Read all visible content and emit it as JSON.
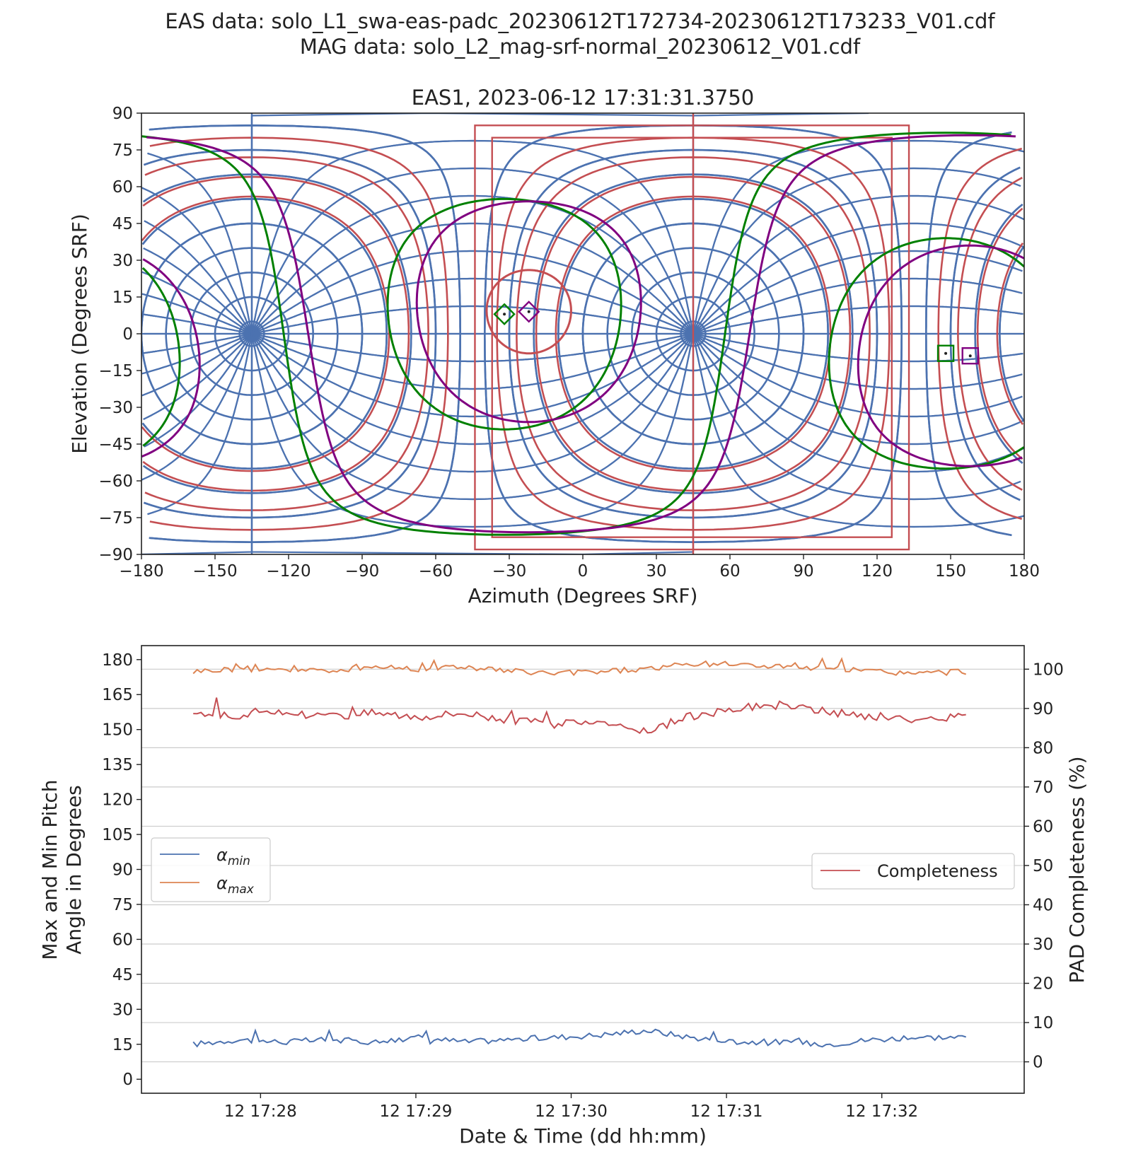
{
  "figure": {
    "suptitle_lines": [
      "EAS data: solo_L1_swa-eas-padc_20230612T172734-20230612T173233_V01.cdf",
      "MAG data: solo_L2_mag-srf-normal_20230612_V01.cdf"
    ]
  },
  "chart_data": [
    {
      "type": "line",
      "title": "EAS1, 2023-06-12 17:31:31.3750",
      "xlabel": "Azimuth (Degrees SRF)",
      "ylabel": "Elevation (Degrees SRF)",
      "xlim": [
        -180,
        180
      ],
      "ylim": [
        -90,
        90
      ],
      "xticks": [
        "−180",
        "−150",
        "−120",
        "−90",
        "−60",
        "−30",
        "0",
        "30",
        "60",
        "90",
        "120",
        "150",
        "180"
      ],
      "yticks": [
        "90",
        "75",
        "60",
        "45",
        "30",
        "15",
        "0",
        "-15",
        "-30",
        "-45",
        "-60",
        "-75",
        "-90"
      ],
      "grid": false,
      "colors": {
        "sensor_grid": "#4c72b0",
        "pad_boundary": "#c44e52",
        "field_plus": "#008000",
        "field_minus": "#800080"
      },
      "series": [
        {
          "role": "eas-head-grid",
          "color": "#4c72b0",
          "centers": [
            [
              -135,
              0
            ],
            [
              45,
              0
            ]
          ]
        },
        {
          "role": "pad-boundary",
          "color": "#c44e52",
          "centers": [
            [
              -135,
              0
            ],
            [
              45,
              0
            ]
          ]
        },
        {
          "role": "field-circle-green",
          "color": "#008000",
          "center": [
            -32,
            8
          ],
          "angular_radius": 47
        },
        {
          "role": "field-circle-purple",
          "color": "#800080",
          "center": [
            -22,
            9
          ],
          "angular_radius": 45
        },
        {
          "role": "field-circle-green-anti",
          "color": "#008000",
          "center": [
            148,
            -8
          ],
          "angular_radius": 47
        },
        {
          "role": "field-circle-purple-anti",
          "color": "#800080",
          "center": [
            158,
            -9
          ],
          "angular_radius": 45
        },
        {
          "role": "small-red-circle",
          "color": "#c44e52",
          "center": [
            -22,
            9
          ],
          "angular_radius": 17
        }
      ],
      "markers": [
        {
          "shape": "diamond",
          "color": "#008000",
          "x": -32,
          "y": 8
        },
        {
          "shape": "diamond",
          "color": "#800080",
          "x": -22,
          "y": 9
        },
        {
          "shape": "square",
          "color": "#008000",
          "x": 148,
          "y": -8
        },
        {
          "shape": "square",
          "color": "#800080",
          "x": 158,
          "y": -9
        }
      ]
    },
    {
      "type": "line",
      "title": "",
      "xlabel": "Date & Time (dd hh:mm)",
      "ylabel": "Max and Min Pitch\nAngle in Degrees",
      "ylabel_lines": [
        "Max and Min Pitch",
        "Angle in Degrees"
      ],
      "y2label": "PAD Completeness (%)",
      "x_range_times": [
        "2023-06-12 17:27:34",
        "2023-06-12 17:32:33"
      ],
      "xticks": [
        "12 17:28",
        "12 17:29",
        "12 17:30",
        "12 17:31",
        "12 17:32"
      ],
      "xtick_times": [
        "17:28:00",
        "17:29:00",
        "17:30:00",
        "17:31:00",
        "17:32:00"
      ],
      "ylim": [
        -6,
        186
      ],
      "yticks": [
        "180",
        "165",
        "150",
        "135",
        "120",
        "105",
        "90",
        "75",
        "60",
        "45",
        "30",
        "15",
        "0"
      ],
      "y2lim": [
        -8,
        106
      ],
      "y2ticks": [
        "100",
        "90",
        "80",
        "70",
        "60",
        "50",
        "40",
        "30",
        "20",
        "10",
        "0"
      ],
      "grid": true,
      "legend_left": {
        "placement": "center-left",
        "entries": [
          {
            "label": "α",
            "sub": "min",
            "color": "#4c72b0"
          },
          {
            "label": "α",
            "sub": "max",
            "color": "#dd8452"
          }
        ]
      },
      "legend_right": {
        "placement": "center-right",
        "entries": [
          {
            "label": "Completeness",
            "color": "#c44e52"
          }
        ]
      },
      "series": [
        {
          "name": "αmin",
          "axis": "left",
          "color": "#4c72b0",
          "t_seconds": [
            0,
            17,
            35,
            52,
            70,
            87,
            105,
            122,
            140,
            157,
            175,
            192,
            210,
            227,
            245,
            262,
            280,
            299
          ],
          "values": [
            15,
            17,
            16,
            17,
            16,
            18,
            16,
            17,
            18,
            19,
            21,
            18,
            16,
            16,
            15,
            17,
            18,
            18
          ]
        },
        {
          "name": "αmax",
          "axis": "left",
          "color": "#dd8452",
          "t_seconds": [
            0,
            17,
            35,
            52,
            70,
            87,
            105,
            122,
            140,
            157,
            175,
            192,
            210,
            227,
            245,
            262,
            280,
            299
          ],
          "values": [
            175,
            176,
            176,
            175,
            177,
            176,
            177,
            175,
            174,
            175,
            176,
            178,
            178,
            177,
            176,
            175,
            174,
            175
          ]
        },
        {
          "name": "Completeness",
          "axis": "right",
          "color": "#c44e52",
          "t_seconds": [
            0,
            17,
            35,
            52,
            70,
            87,
            105,
            122,
            140,
            157,
            175,
            192,
            210,
            227,
            245,
            262,
            280,
            299
          ],
          "values": [
            89,
            88,
            89,
            88,
            89,
            88,
            89,
            87,
            86,
            87,
            84,
            88,
            90,
            91,
            89,
            88,
            87,
            88
          ]
        }
      ]
    }
  ]
}
